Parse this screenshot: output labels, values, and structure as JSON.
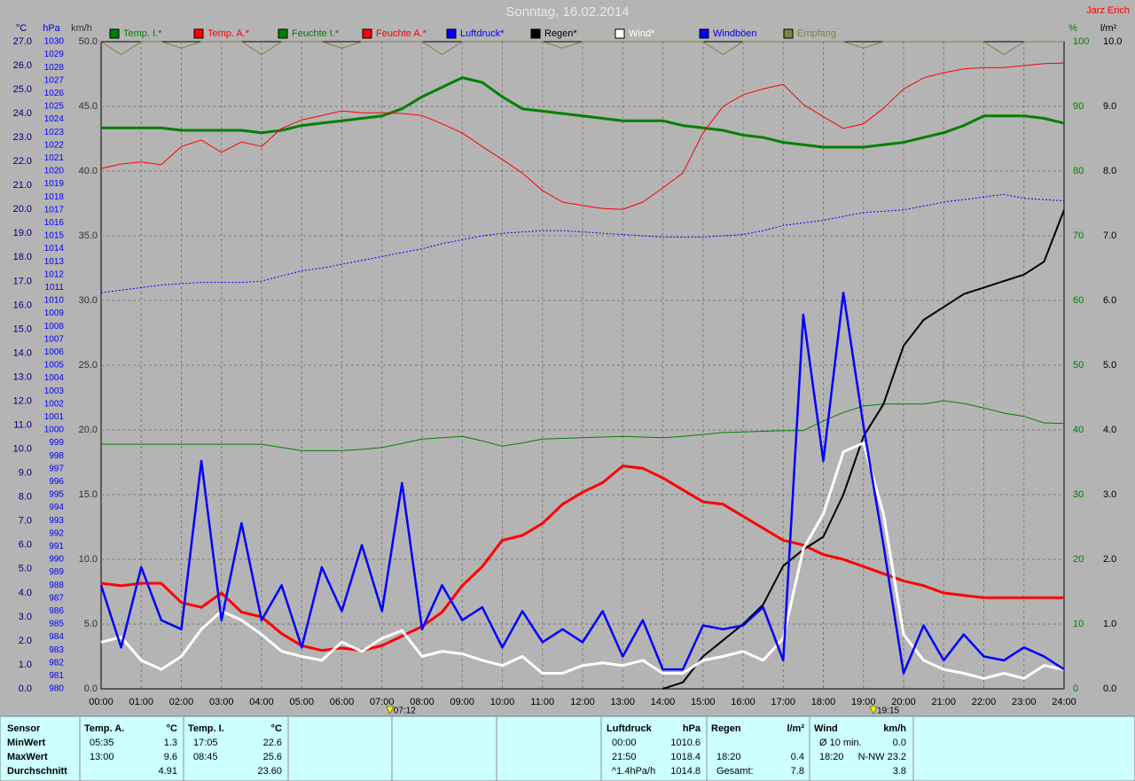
{
  "chart_data": {
    "type": "line",
    "title": "Sonntag, 16.02.2014",
    "author": "Jarz Erich",
    "xlim": [
      0,
      24
    ],
    "xticks": [
      {
        "value": 0,
        "label": "00:00"
      },
      {
        "value": 1,
        "label": "01:00"
      },
      {
        "value": 2,
        "label": "02:00"
      },
      {
        "value": 3,
        "label": "03:00"
      },
      {
        "value": 4,
        "label": "04:00"
      },
      {
        "value": 5,
        "label": "05:00"
      },
      {
        "value": 6,
        "label": "06:00"
      },
      {
        "value": 7,
        "label": "07:00"
      },
      {
        "value": 8,
        "label": "08:00"
      },
      {
        "value": 9,
        "label": "09:00"
      },
      {
        "value": 10,
        "label": "10:00"
      },
      {
        "value": 11,
        "label": "11:00"
      },
      {
        "value": 12,
        "label": "12:00"
      },
      {
        "value": 13,
        "label": "13:00"
      },
      {
        "value": 14,
        "label": "14:00"
      },
      {
        "value": 15,
        "label": "15:00"
      },
      {
        "value": 16,
        "label": "16:00"
      },
      {
        "value": 17,
        "label": "17:00"
      },
      {
        "value": 18,
        "label": "18:00"
      },
      {
        "value": 19,
        "label": "19:00"
      },
      {
        "value": 20,
        "label": "20:00"
      },
      {
        "value": 21,
        "label": "21:00"
      },
      {
        "value": 22,
        "label": "22:00"
      },
      {
        "value": 23,
        "label": "23:00"
      },
      {
        "value": 24,
        "label": "24:00"
      }
    ],
    "sun_markers": [
      {
        "value": 7.2,
        "label": "07:12"
      },
      {
        "value": 19.25,
        "label": "19:15"
      }
    ],
    "grid": true,
    "axes": {
      "temp": {
        "label": "°C",
        "color": "#000080",
        "lim": [
          0,
          27
        ],
        "ticks": [
          {
            "value": 0,
            "label": "0.0"
          },
          {
            "value": 1,
            "label": "1.0"
          },
          {
            "value": 2,
            "label": "2.0"
          },
          {
            "value": 3,
            "label": "3.0"
          },
          {
            "value": 4,
            "label": "4.0"
          },
          {
            "value": 5,
            "label": "5.0"
          },
          {
            "value": 6,
            "label": "6.0"
          },
          {
            "value": 7,
            "label": "7.0"
          },
          {
            "value": 8,
            "label": "8.0"
          },
          {
            "value": 9,
            "label": "9.0"
          },
          {
            "value": 10,
            "label": "10.0"
          },
          {
            "value": 11,
            "label": "11.0"
          },
          {
            "value": 12,
            "label": "12.0"
          },
          {
            "value": 13,
            "label": "13.0"
          },
          {
            "value": 14,
            "label": "14.0"
          },
          {
            "value": 15,
            "label": "15.0"
          },
          {
            "value": 16,
            "label": "16.0"
          },
          {
            "value": 17,
            "label": "17.0"
          },
          {
            "value": 18,
            "label": "18.0"
          },
          {
            "value": 19,
            "label": "19.0"
          },
          {
            "value": 20,
            "label": "20.0"
          },
          {
            "value": 21,
            "label": "21.0"
          },
          {
            "value": 22,
            "label": "22.0"
          },
          {
            "value": 23,
            "label": "23.0"
          },
          {
            "value": 24,
            "label": "24.0"
          },
          {
            "value": 25,
            "label": "25.0"
          },
          {
            "value": 26,
            "label": "26.0"
          },
          {
            "value": 27,
            "label": "27.0"
          }
        ]
      },
      "pressure": {
        "label": "hPa",
        "color": "#0000ff",
        "lim": [
          980,
          1030
        ],
        "ticks": [
          980,
          981,
          982,
          983,
          984,
          985,
          986,
          987,
          988,
          989,
          990,
          991,
          992,
          993,
          994,
          995,
          996,
          997,
          998,
          999,
          1000,
          1001,
          1002,
          1003,
          1004,
          1005,
          1006,
          1007,
          1008,
          1009,
          1010,
          1011,
          1012,
          1013,
          1014,
          1015,
          1016,
          1017,
          1018,
          1019,
          1020,
          1021,
          1022,
          1023,
          1024,
          1025,
          1026,
          1027,
          1028,
          1029,
          1030
        ]
      },
      "wind": {
        "label": "km/h",
        "color": "#303030",
        "lim": [
          0,
          50
        ],
        "ticks": [
          {
            "value": 0,
            "label": "0.0"
          },
          {
            "value": 5,
            "label": "5.0"
          },
          {
            "value": 10,
            "label": "10.0"
          },
          {
            "value": 15,
            "label": "15.0"
          },
          {
            "value": 20,
            "label": "20.0"
          },
          {
            "value": 25,
            "label": "25.0"
          },
          {
            "value": 30,
            "label": "30.0"
          },
          {
            "value": 35,
            "label": "35.0"
          },
          {
            "value": 40,
            "label": "40.0"
          },
          {
            "value": 45,
            "label": "45.0"
          },
          {
            "value": 50,
            "label": "50.0"
          }
        ]
      },
      "humidity": {
        "label": "%",
        "color": "#008000",
        "lim": [
          0,
          100
        ],
        "ticks": [
          0,
          10,
          20,
          30,
          40,
          50,
          60,
          70,
          80,
          90,
          100
        ]
      },
      "rain": {
        "label": "l/m²",
        "color": "#000000",
        "lim": [
          0,
          10
        ],
        "ticks": [
          {
            "value": 0,
            "label": "0.0"
          },
          {
            "value": 1,
            "label": "1.0"
          },
          {
            "value": 2,
            "label": "2.0"
          },
          {
            "value": 3,
            "label": "3.0"
          },
          {
            "value": 4,
            "label": "4.0"
          },
          {
            "value": 5,
            "label": "5.0"
          },
          {
            "value": 6,
            "label": "6.0"
          },
          {
            "value": 7,
            "label": "7.0"
          },
          {
            "value": 8,
            "label": "8.0"
          },
          {
            "value": 9,
            "label": "9.0"
          },
          {
            "value": 10,
            "label": "10.0"
          }
        ]
      }
    },
    "x": [
      0,
      0.5,
      1,
      1.5,
      2,
      2.5,
      3,
      3.5,
      4,
      4.5,
      5,
      5.5,
      6,
      6.5,
      7,
      7.5,
      8,
      8.5,
      9,
      9.5,
      10,
      10.5,
      11,
      11.5,
      12,
      12.5,
      13,
      13.5,
      14,
      14.5,
      15,
      15.5,
      16,
      16.5,
      17,
      17.5,
      18,
      18.5,
      19,
      19.5,
      20,
      20.5,
      21,
      21.5,
      22,
      22.5,
      23,
      23.5,
      24
    ],
    "series": [
      {
        "name": "Temp. I.*",
        "color": "#008000",
        "axis": "temp",
        "line_width": 3,
        "values": [
          23.4,
          23.4,
          23.4,
          23.4,
          23.3,
          23.3,
          23.3,
          23.3,
          23.2,
          23.3,
          23.5,
          23.6,
          23.7,
          23.8,
          23.9,
          24.2,
          24.7,
          25.1,
          25.5,
          25.3,
          24.7,
          24.2,
          24.1,
          24.0,
          23.9,
          23.8,
          23.7,
          23.7,
          23.7,
          23.5,
          23.4,
          23.3,
          23.1,
          23.0,
          22.8,
          22.7,
          22.6,
          22.6,
          22.6,
          22.7,
          22.8,
          23.0,
          23.2,
          23.5,
          23.9,
          23.9,
          23.9,
          23.8,
          23.6
        ]
      },
      {
        "name": "Temp. A.*",
        "color": "#ff0000",
        "axis": "temp",
        "line_width": 3,
        "values": [
          4.4,
          4.3,
          4.4,
          4.4,
          3.6,
          3.4,
          4.0,
          3.2,
          3.0,
          2.3,
          1.8,
          1.6,
          1.7,
          1.6,
          1.8,
          2.2,
          2.6,
          3.2,
          4.3,
          5.1,
          6.2,
          6.4,
          6.9,
          7.7,
          8.2,
          8.6,
          9.3,
          9.2,
          8.8,
          8.3,
          7.8,
          7.7,
          7.2,
          6.7,
          6.2,
          6.0,
          5.6,
          5.4,
          5.1,
          4.8,
          4.5,
          4.3,
          4.0,
          3.9,
          3.8,
          3.8,
          3.8,
          3.8,
          3.8
        ]
      },
      {
        "name": "Feuchte I.*",
        "color": "#008000",
        "axis": "humidity",
        "line_width": 1,
        "values": [
          37.8,
          37.8,
          37.8,
          37.8,
          37.8,
          37.8,
          37.8,
          37.8,
          37.8,
          37.3,
          36.8,
          36.8,
          36.8,
          37.0,
          37.3,
          37.9,
          38.6,
          38.8,
          39.0,
          38.3,
          37.5,
          38.0,
          38.6,
          38.7,
          38.8,
          38.9,
          39.0,
          38.9,
          38.8,
          39.0,
          39.3,
          39.6,
          39.7,
          39.8,
          39.9,
          39.9,
          41.4,
          42.7,
          43.7,
          44.0,
          44.0,
          44.0,
          44.5,
          44.1,
          43.4,
          42.6,
          42.1,
          41.1,
          41.0
        ]
      },
      {
        "name": "Feuchte A.*",
        "color": "#ff0000",
        "axis": "humidity",
        "line_width": 1,
        "values": [
          80.4,
          81.1,
          81.4,
          81.0,
          83.8,
          84.8,
          82.9,
          84.5,
          83.8,
          86.6,
          87.9,
          88.6,
          89.3,
          89.0,
          89.0,
          88.9,
          88.6,
          87.3,
          85.9,
          83.8,
          81.8,
          79.7,
          77.0,
          75.2,
          74.7,
          74.2,
          74.1,
          75.2,
          77.4,
          79.7,
          85.9,
          90.0,
          91.8,
          92.7,
          93.4,
          90.3,
          88.4,
          86.6,
          87.3,
          89.7,
          92.7,
          94.4,
          95.2,
          95.8,
          96.0,
          96.0,
          96.3,
          96.6,
          96.7
        ]
      },
      {
        "name": "Luftdruck*",
        "color": "#0000ff",
        "axis": "pressure",
        "line_width": 1,
        "dashed": true,
        "values": [
          1010.6,
          1010.8,
          1011.0,
          1011.2,
          1011.3,
          1011.4,
          1011.4,
          1011.4,
          1011.5,
          1011.9,
          1012.3,
          1012.5,
          1012.8,
          1013.1,
          1013.4,
          1013.7,
          1014.0,
          1014.4,
          1014.7,
          1015.0,
          1015.2,
          1015.3,
          1015.4,
          1015.4,
          1015.3,
          1015.2,
          1015.1,
          1015.0,
          1014.9,
          1014.9,
          1014.9,
          1015.0,
          1015.1,
          1015.4,
          1015.8,
          1016.0,
          1016.2,
          1016.5,
          1016.8,
          1016.9,
          1017.0,
          1017.3,
          1017.6,
          1017.8,
          1018.0,
          1018.2,
          1017.9,
          1017.8,
          1017.7
        ]
      },
      {
        "name": "Regen*",
        "color": "#000000",
        "axis": "rain",
        "line_width": 2,
        "values": [
          null,
          null,
          null,
          null,
          null,
          null,
          null,
          null,
          null,
          null,
          null,
          null,
          null,
          null,
          null,
          null,
          null,
          null,
          null,
          null,
          null,
          null,
          null,
          null,
          null,
          null,
          null,
          null,
          0.0,
          0.1,
          0.5,
          0.75,
          1.0,
          1.3,
          1.9,
          2.15,
          2.35,
          3.0,
          3.9,
          4.4,
          5.3,
          5.7,
          5.9,
          6.1,
          6.2,
          6.3,
          6.4,
          6.6,
          7.4
        ]
      },
      {
        "name": "Wind*",
        "color": "#ffffff",
        "axis": "wind",
        "line_width": 3,
        "values": [
          3.6,
          4.0,
          2.2,
          1.5,
          2.5,
          4.6,
          6.0,
          5.3,
          4.2,
          2.9,
          2.5,
          2.2,
          3.6,
          2.9,
          3.9,
          4.5,
          2.5,
          2.9,
          2.7,
          2.2,
          1.8,
          2.5,
          1.2,
          1.2,
          1.8,
          2.0,
          1.8,
          2.2,
          1.2,
          1.2,
          2.2,
          2.5,
          2.9,
          2.2,
          3.9,
          10.8,
          13.5,
          18.3,
          19.0,
          13.5,
          4.2,
          2.2,
          1.5,
          1.2,
          0.8,
          1.2,
          0.8,
          1.8,
          1.5
        ]
      },
      {
        "name": "Windböen",
        "color": "#0000ff",
        "axis": "wind",
        "line_width": 2.5,
        "values": [
          8.0,
          3.2,
          9.4,
          5.3,
          4.6,
          17.6,
          5.3,
          12.8,
          5.3,
          8.0,
          3.2,
          9.4,
          6.0,
          11.1,
          6.0,
          15.9,
          4.6,
          8.0,
          5.3,
          6.3,
          3.2,
          6.0,
          3.6,
          4.6,
          3.6,
          6.0,
          2.5,
          5.3,
          1.5,
          1.5,
          4.9,
          4.6,
          4.9,
          6.3,
          2.2,
          28.9,
          17.6,
          30.6,
          20.3,
          11.1,
          1.2,
          4.9,
          2.2,
          4.2,
          2.5,
          2.2,
          3.2,
          2.5,
          1.5
        ]
      },
      {
        "name": "Empfang",
        "color": "#808040",
        "axis": "humidity",
        "line_width": 1,
        "values": [
          100,
          98,
          100,
          100,
          99,
          100,
          100,
          100,
          98,
          100,
          100,
          100,
          99,
          100,
          100,
          100,
          100,
          98,
          100,
          100,
          100,
          100,
          100,
          99,
          100,
          100,
          100,
          100,
          100,
          100,
          100,
          98,
          100,
          100,
          100,
          100,
          100,
          100,
          99,
          100,
          100,
          100,
          100,
          100,
          100,
          98,
          100,
          100,
          100
        ]
      }
    ]
  },
  "stats": {
    "row_labels": [
      "Sensor",
      "MinWert",
      "MaxWert",
      "Durchschnitt"
    ],
    "columns": [
      {
        "title": "Temp. A.",
        "unit": "°C",
        "rows": [
          [
            "05:35",
            "1.3"
          ],
          [
            "13:00",
            "9.6"
          ],
          [
            "4.91"
          ]
        ]
      },
      {
        "title": "Temp. I.",
        "unit": "°C",
        "rows": [
          [
            "17:05",
            "22.6"
          ],
          [
            "08:45",
            "25.6"
          ],
          [
            "23.60"
          ]
        ]
      },
      {
        "title": "Luftdruck",
        "unit": "hPa",
        "rows": [
          [
            "00:00",
            "1010.6"
          ],
          [
            "21:50",
            "1018.4"
          ],
          [
            "^1.4hPa/h",
            "1014.8"
          ]
        ]
      },
      {
        "title": "Regen",
        "unit": "l/m²",
        "rows": [
          [],
          [
            "18:20",
            "0.4"
          ],
          [
            "Gesamt:",
            "7.8"
          ]
        ]
      },
      {
        "title": "Wind",
        "unit": "km/h",
        "rows": [
          [
            "Ø 10 min.",
            "0.0"
          ],
          [
            "18:20",
            "N-NW 23.2"
          ],
          [
            "3.8"
          ]
        ]
      }
    ]
  }
}
